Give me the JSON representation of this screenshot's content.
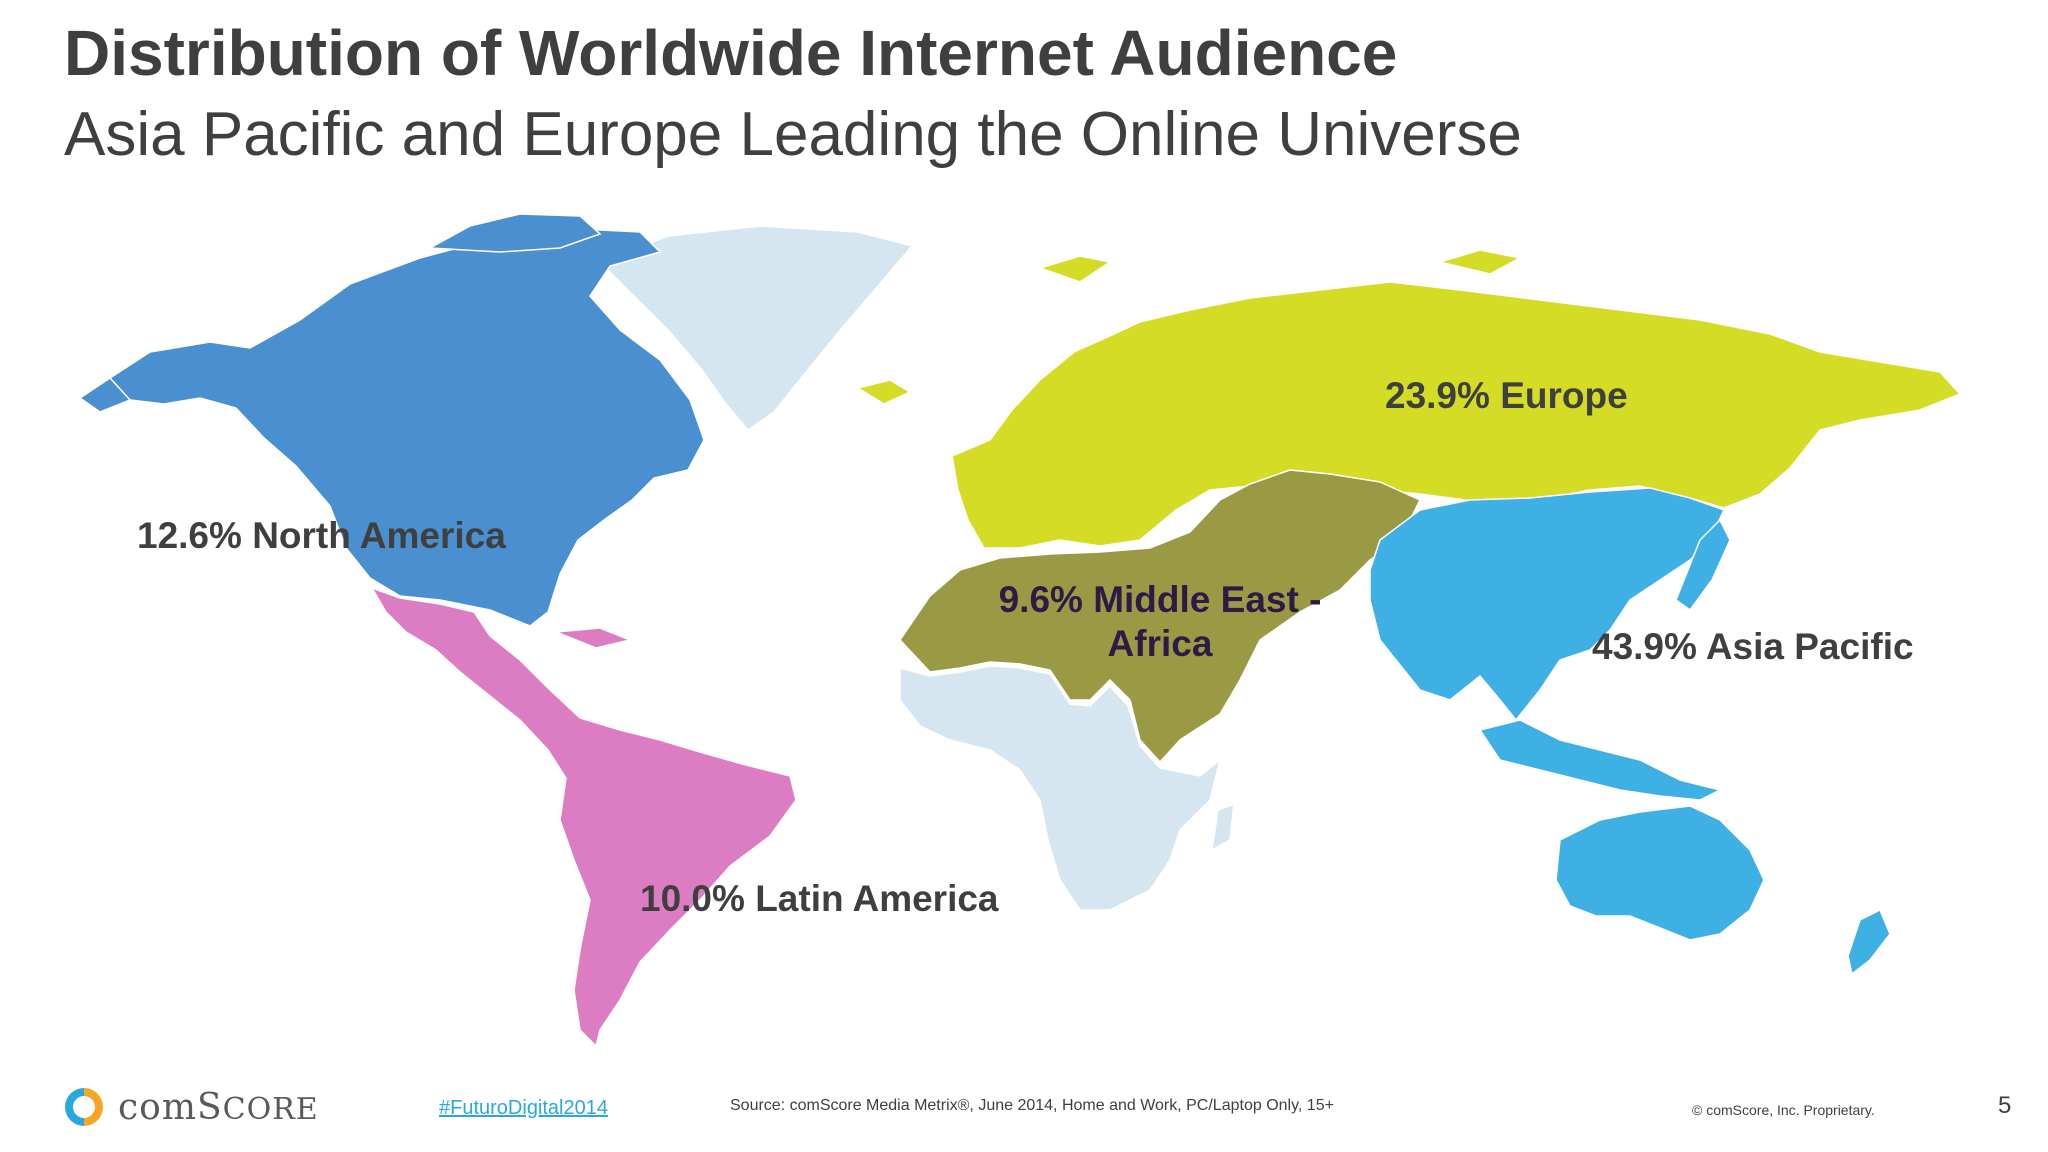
{
  "slide": {
    "title": "Distribution of Worldwide Internet Audience",
    "subtitle": "Asia Pacific and Europe Leading the Online Universe"
  },
  "regions": {
    "north_america": {
      "label": "12.6% North America",
      "share": 12.6,
      "color": "#4a8fcf"
    },
    "latin_america": {
      "label": "10.0% Latin America",
      "share": 10.0,
      "color": "#dc7dc3"
    },
    "europe": {
      "label": "23.9% Europe",
      "share": 23.9,
      "color": "#d5dc26"
    },
    "middle_east_africa": {
      "label": "9.6% Middle East - Africa",
      "share": 9.6,
      "color": "#9a9a45"
    },
    "asia_pacific": {
      "label": "43.9% Asia Pacific",
      "share": 43.9,
      "color": "#3fb0e3"
    },
    "unmeasured_color": "#d6e6f1"
  },
  "footer": {
    "logo_text": "comScore",
    "hashtag": "#FuturoDigital2014",
    "source": "Source: comScore Media Metrix®, June 2014, Home and Work, PC/Laptop Only, 15+",
    "copyright": "© comScore, Inc. Proprietary.",
    "page_number": "5"
  }
}
